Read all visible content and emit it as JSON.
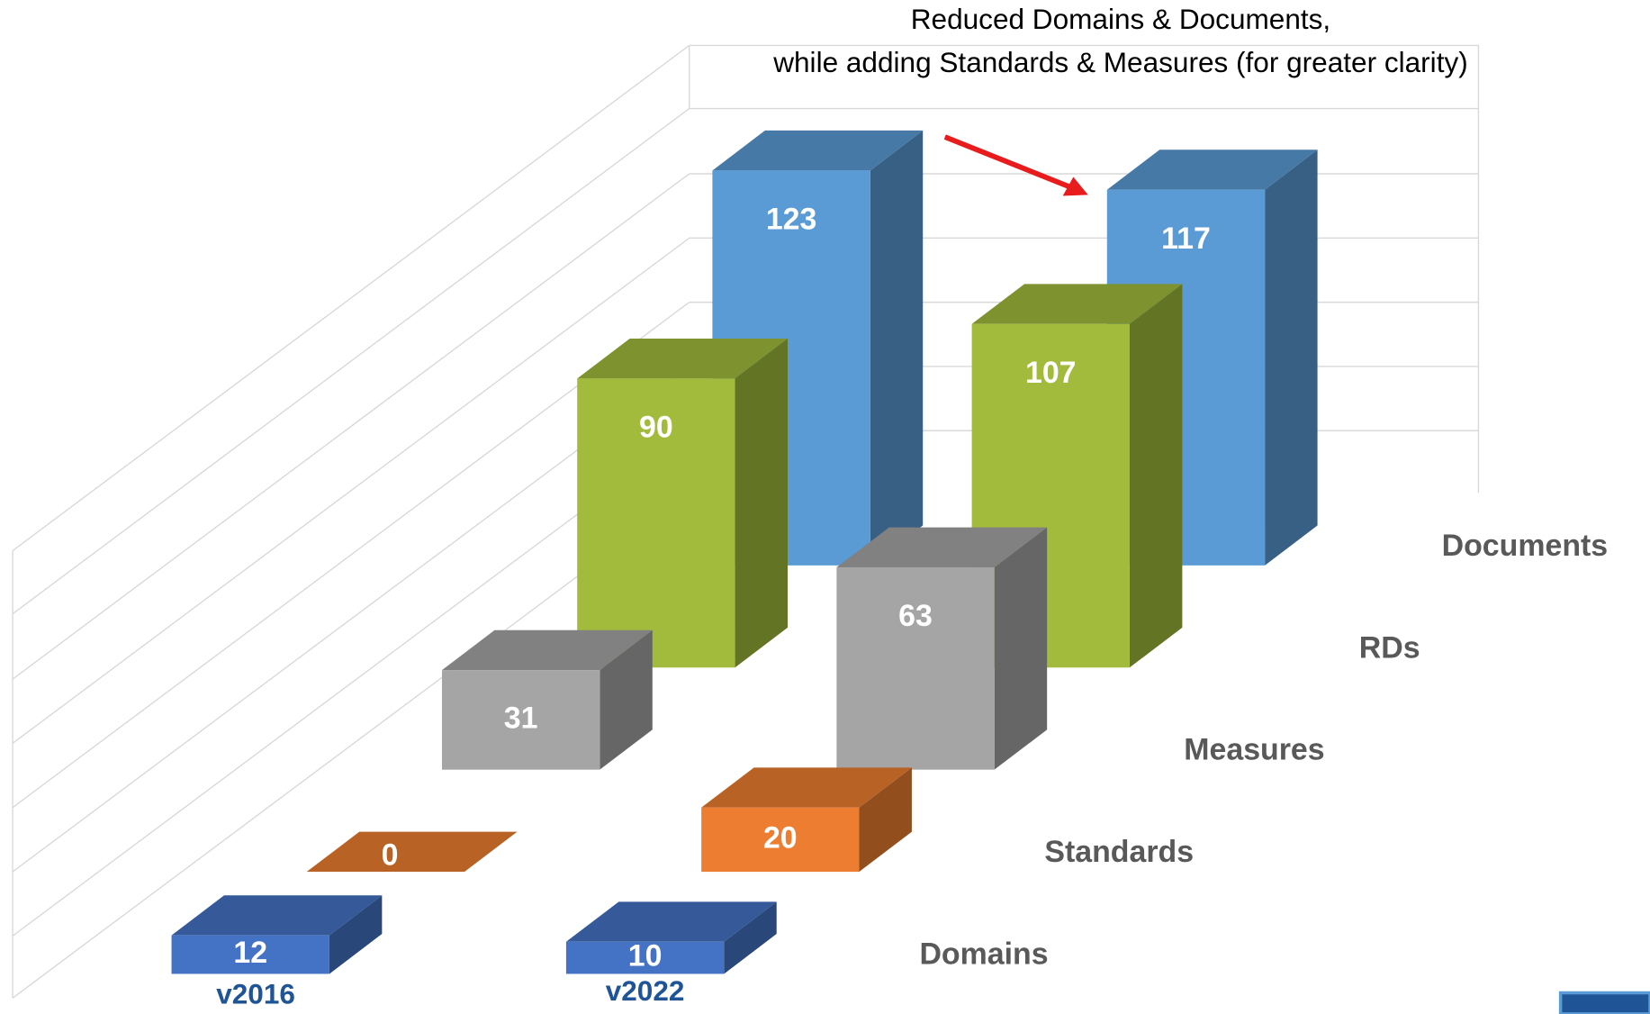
{
  "chart_data": {
    "type": "bar",
    "annotation": [
      "Reduced Domains & Documents,",
      "while adding Standards & Measures (for greater clarity)"
    ],
    "categories": [
      "v2016",
      "v2022"
    ],
    "series": [
      {
        "name": "Domains",
        "color": "#4472c4",
        "values": [
          12,
          10
        ]
      },
      {
        "name": "Standards",
        "color": "#ed7d31",
        "values": [
          0,
          20
        ]
      },
      {
        "name": "Measures",
        "color": "#a5a5a5",
        "values": [
          31,
          63
        ]
      },
      {
        "name": "RDs",
        "color": "#a2bb3c",
        "values": [
          90,
          107
        ]
      },
      {
        "name": "Documents",
        "color": "#5b9bd5",
        "values": [
          123,
          117
        ]
      }
    ]
  }
}
